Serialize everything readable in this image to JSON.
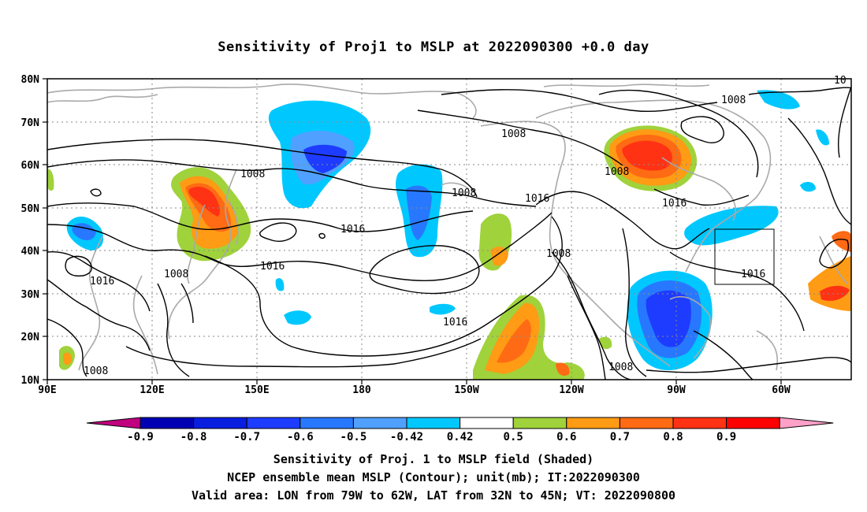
{
  "title": "Sensitivity of Proj1 to MSLP at 2022090300 +0.0 day",
  "lat_labels": [
    "80N",
    "70N",
    "60N",
    "50N",
    "40N",
    "30N",
    "20N",
    "10N"
  ],
  "lon_labels": [
    "90E",
    "120E",
    "150E",
    "180",
    "150W",
    "120W",
    "90W",
    "60W"
  ],
  "colorbar": {
    "labels": [
      "-0.9",
      "-0.8",
      "-0.7",
      "-0.6",
      "-0.5",
      "-0.42",
      "0.42",
      "0.5",
      "0.6",
      "0.7",
      "0.8",
      "0.9"
    ],
    "colors": [
      "#c0007f",
      "#0000b4",
      "#0a1ee0",
      "#1e3cff",
      "#2878ff",
      "#50a0ff",
      "#00c8ff",
      "#ffffff",
      "#a0d23c",
      "#ff9b14",
      "#ff6a14",
      "#ff3214",
      "#ff0000",
      "#ffa0c8"
    ]
  },
  "contour_labels": {
    "c1008_a": "1008",
    "c1008_b": "1008",
    "c1008_c": "1008",
    "c1008_d": "1008",
    "c1008_e": "1008",
    "c1008_f": "1008",
    "c1008_g": "1008",
    "c1008_h": "1008",
    "c1016_a": "1016",
    "c1016_b": "1016",
    "c1016_c": "1016",
    "c1016_d": "1016",
    "c1016_e": "1016",
    "c1016_f": "1016",
    "c1016_g": "1016",
    "c_top": "10"
  },
  "captions": {
    "line1": "Sensitivity of Proj. 1 to MSLP field (Shaded)",
    "line2": "NCEP ensemble mean MSLP (Contour); unit(mb); IT:2022090300",
    "line3": "Valid area: LON from 79W to 62W, LAT from 32N to 45N; VT: 2022090800"
  }
}
